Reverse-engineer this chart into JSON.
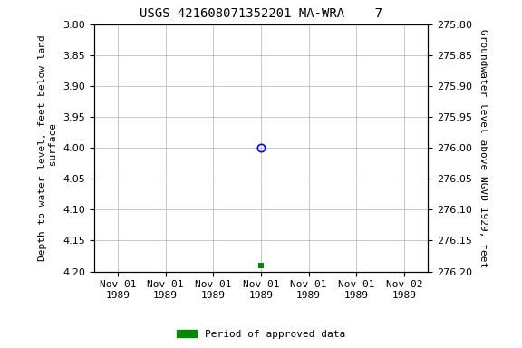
{
  "title": "USGS 421608071352201 MA-WRA    7",
  "ylabel_left": "Depth to water level, feet below land\n surface",
  "ylabel_right": "Groundwater level above NGVD 1929, feet",
  "ylim_left": [
    3.8,
    4.2
  ],
  "ylim_right": [
    275.8,
    276.2
  ],
  "yticks_left": [
    3.8,
    3.85,
    3.9,
    3.95,
    4.0,
    4.05,
    4.1,
    4.15,
    4.2
  ],
  "yticks_right": [
    275.8,
    275.85,
    275.9,
    275.95,
    276.0,
    276.05,
    276.1,
    276.15,
    276.2
  ],
  "data_open_circle": {
    "x": 3.0,
    "value": 4.0
  },
  "data_green_square": {
    "x": 3.0,
    "value": 4.19
  },
  "legend_label": "Period of approved data",
  "legend_color": "#008800",
  "x_tick_labels": [
    "Nov 01\n1989",
    "Nov 01\n1989",
    "Nov 01\n1989",
    "Nov 01\n1989",
    "Nov 01\n1989",
    "Nov 01\n1989",
    "Nov 02\n1989"
  ],
  "background_color": "#ffffff",
  "grid_color": "#b0b0b0",
  "title_fontsize": 10,
  "axis_fontsize": 8,
  "tick_fontsize": 8
}
